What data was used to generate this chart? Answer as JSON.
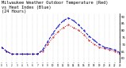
{
  "title": "- - - - - - - - - - - - - - - - - - - - - - - -  ■ ■■■■■■■■■■■■■■",
  "title_line1": "Milwaukee Weather Outdoor Temperature (Red)",
  "title_line2": "vs Heat Index (Blue)",
  "title_line3": "(24 Hours)",
  "title_fontsize": 3.8,
  "red_color": "#cc0000",
  "blue_color": "#0000cc",
  "background_color": "#ffffff",
  "grid_color": "#888888",
  "ylim": [
    57,
    92
  ],
  "xlim": [
    0,
    23
  ],
  "ytick_vals": [
    60,
    65,
    70,
    75,
    80,
    85,
    90
  ],
  "ytick_labels": [
    "60",
    "65",
    "70",
    "75",
    "80",
    "85",
    "90"
  ],
  "hours": [
    0,
    1,
    2,
    3,
    4,
    5,
    6,
    7,
    8,
    9,
    10,
    11,
    12,
    13,
    14,
    15,
    16,
    17,
    18,
    19,
    20,
    21,
    22,
    23
  ],
  "temp_red": [
    68,
    65,
    63,
    63,
    63,
    63,
    63,
    63,
    65,
    70,
    75,
    79,
    82,
    84,
    82,
    80,
    77,
    73,
    70,
    68,
    67,
    66,
    65,
    63
  ],
  "heat_blue": [
    68,
    65,
    63,
    63,
    63,
    63,
    63,
    63,
    66,
    72,
    78,
    83,
    87,
    89,
    87,
    84,
    80,
    76,
    73,
    70,
    68,
    67,
    66,
    64
  ]
}
